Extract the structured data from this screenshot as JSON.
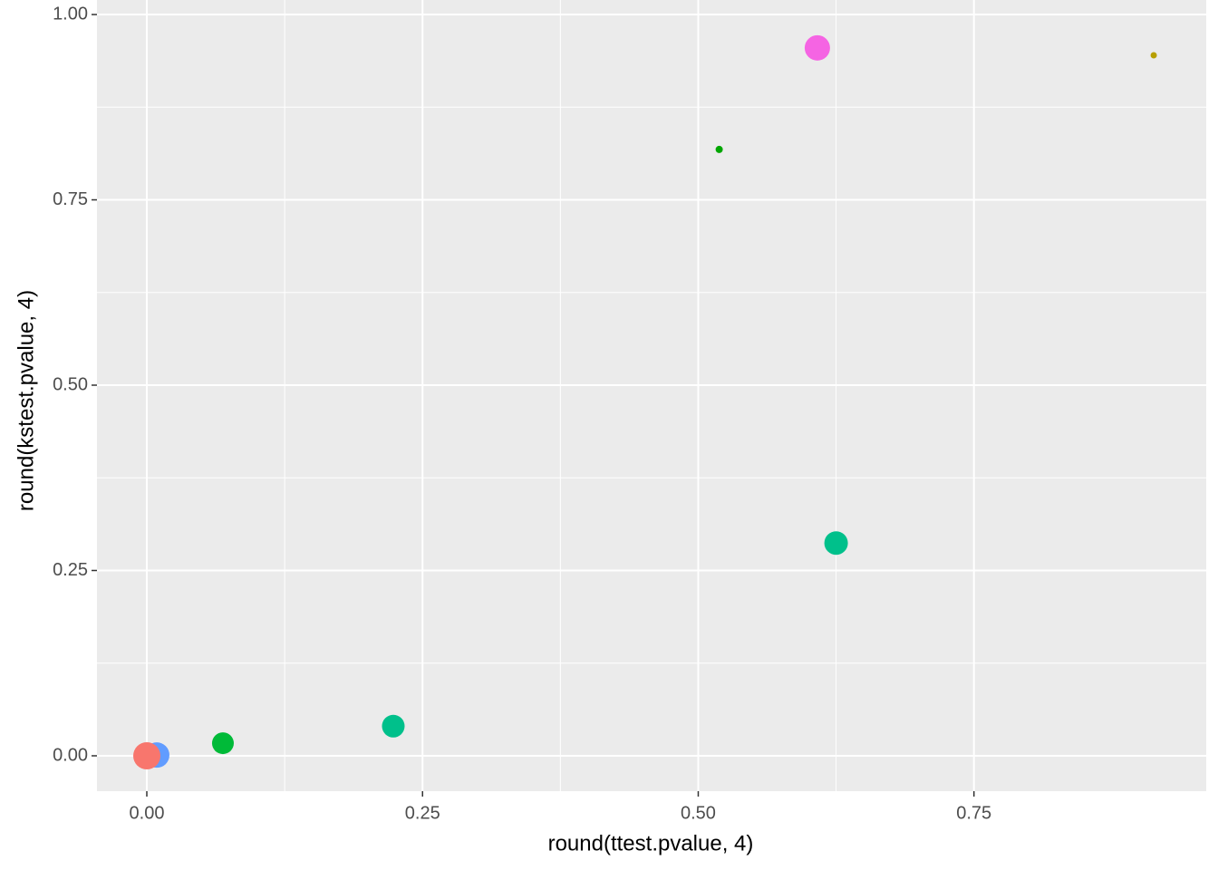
{
  "chart_data": {
    "type": "scatter",
    "x_label": "round(ttest.pvalue, 4)",
    "y_label": "round(kstest.pvalue, 4)",
    "x": [
      0.913,
      0.608,
      0.519,
      0.625,
      0.2235,
      0.069,
      0.009,
      0
    ],
    "y": [
      0.945,
      0.955,
      0.818,
      0.287,
      0.04,
      0.017,
      0.001,
      0
    ],
    "sizes": [
      3.5,
      14,
      4,
      13,
      12.5,
      12,
      14,
      15
    ],
    "colors": [
      "#B79F00",
      "#F564E3",
      "#00A600",
      "#00C08B",
      "#00C08B",
      "#00BA38",
      "#619CFF",
      "#F8766D"
    ],
    "xlim": [
      -0.0452,
      0.9606
    ],
    "ylim": [
      -0.0477,
      1.0196
    ],
    "xticks": [
      {
        "value": 0,
        "label": "0.00"
      },
      0.25,
      {
        "value": 0.5,
        "label": "0.50"
      },
      0.75
    ],
    "yticks": [
      {
        "value": 0,
        "label": "0.00"
      },
      0.25,
      {
        "value": 0.5,
        "label": "0.50"
      },
      0.75,
      {
        "value": 1,
        "label": "1.00"
      }
    ],
    "grid": true
  }
}
